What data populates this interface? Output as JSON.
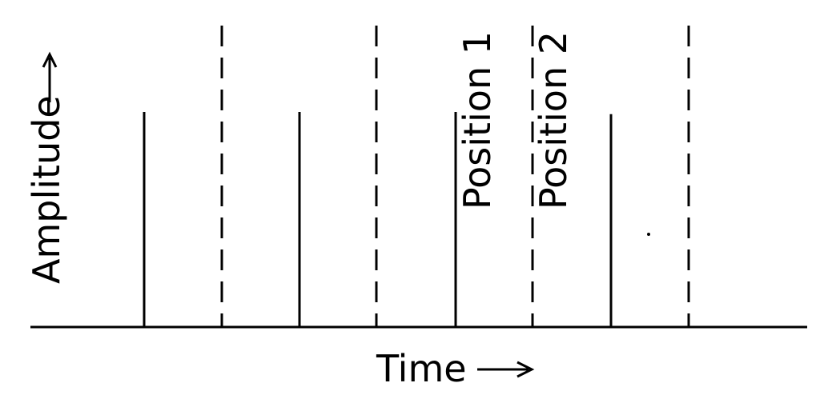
{
  "figure": {
    "x_axis_label": "Time",
    "y_axis_label": "Amplitude",
    "pulses": [
      {
        "label": "",
        "height": 1.0
      },
      {
        "label": "",
        "height": 1.0
      },
      {
        "label": "",
        "height": 1.0
      },
      {
        "label": "",
        "height": 0.99
      }
    ],
    "markers": [
      {
        "label": ""
      },
      {
        "label": ""
      },
      {
        "label": "Position 1"
      },
      {
        "label": "Position 2"
      },
      {
        "label": ""
      }
    ],
    "colors": {
      "ink": "#000000",
      "background": "#ffffff"
    }
  }
}
